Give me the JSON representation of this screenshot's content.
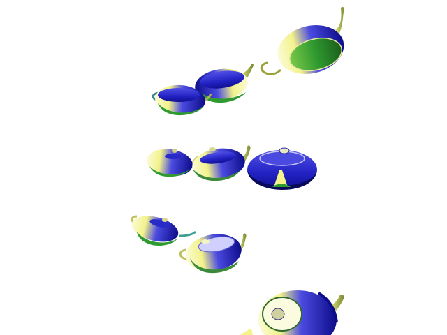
{
  "scene": {
    "background": "#ffffff",
    "palette": {
      "blue": "#2b2bd6",
      "deep_blue": "#0c0c8a",
      "yellow": "#f4f48a",
      "pale_yellow": "#fbfbd6",
      "green": "#2f9a2f",
      "dark_green": "#1b5e1b"
    },
    "object_icon": "teapot-icon",
    "teapot_count": 10
  }
}
